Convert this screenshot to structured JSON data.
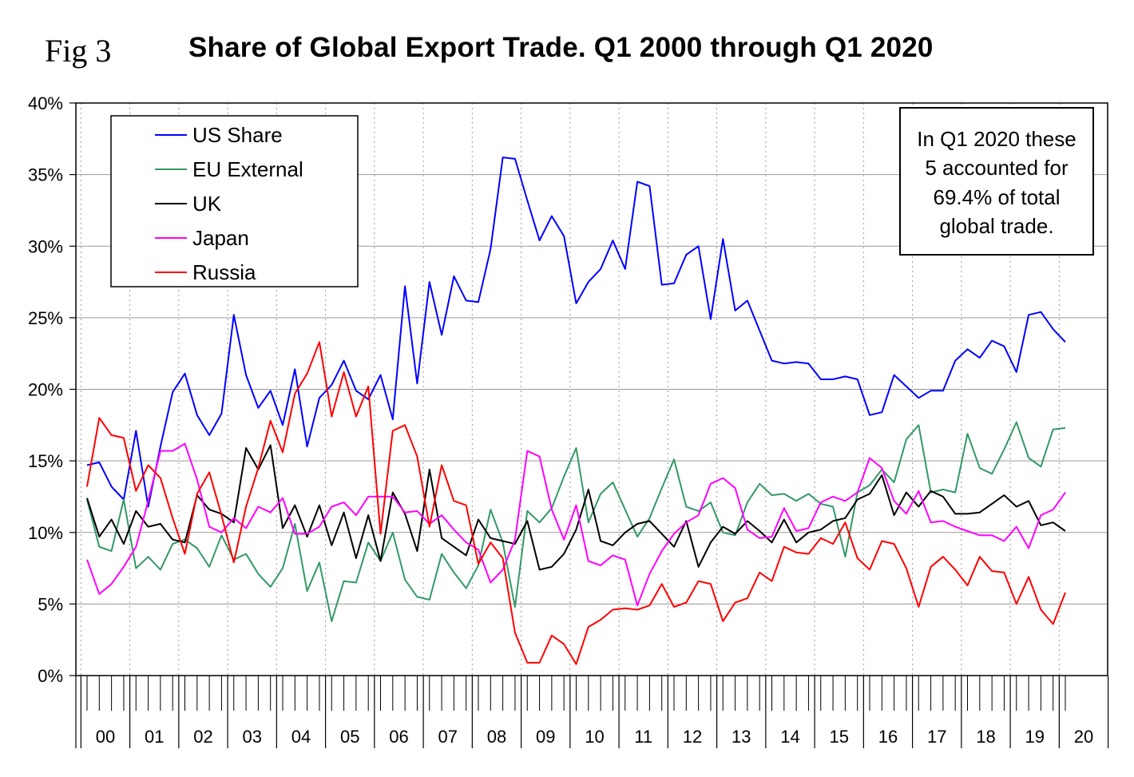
{
  "header": {
    "fig_label": "Fig 3",
    "title": "Share of Global Export Trade. Q1 2000 through Q1 2020"
  },
  "note": {
    "lines": [
      "In Q1 2020 these",
      "5 accounted for",
      "69.4% of total",
      "global trade."
    ]
  },
  "chart_data": {
    "type": "line",
    "title": "Share of Global Export Trade. Q1 2000 through Q1 2020",
    "xlabel": "",
    "ylabel": "",
    "ylim": [
      0,
      40
    ],
    "y_ticks": [
      "0%",
      "5%",
      "10%",
      "15%",
      "20%",
      "25%",
      "30%",
      "35%",
      "40%"
    ],
    "year_labels": [
      "00",
      "01",
      "02",
      "03",
      "04",
      "05",
      "06",
      "07",
      "08",
      "09",
      "10",
      "11",
      "12",
      "13",
      "14",
      "15",
      "16",
      "17",
      "18",
      "19",
      "20"
    ],
    "grid": true,
    "legend_position": "top-left",
    "quarters_count": 81,
    "series": [
      {
        "name": "US  Share",
        "color": "#0000ff",
        "values": [
          14.7,
          14.9,
          13.2,
          12.3,
          17.1,
          11.8,
          16.0,
          19.8,
          21.1,
          18.2,
          16.8,
          18.3,
          25.2,
          21.0,
          18.7,
          19.9,
          17.5,
          21.4,
          16.0,
          19.4,
          20.3,
          22.0,
          19.9,
          19.3,
          21.0,
          17.9,
          27.2,
          20.4,
          27.5,
          23.8,
          27.9,
          26.2,
          26.1,
          29.8,
          36.2,
          36.1,
          33.2,
          30.4,
          32.1,
          30.7,
          26.0,
          27.5,
          28.4,
          30.4,
          28.4,
          34.5,
          34.2,
          27.3,
          27.4,
          29.4,
          30.0,
          24.9,
          30.5,
          25.5,
          26.2,
          24.1,
          22.0,
          21.8,
          21.9,
          21.8,
          20.7,
          20.7,
          20.9,
          20.7,
          18.2,
          18.4,
          21.0,
          20.2,
          19.4,
          19.9,
          19.9,
          22.0,
          22.8,
          22.2,
          23.4,
          23.0,
          21.2,
          25.2,
          25.4,
          24.2,
          23.3
        ]
      },
      {
        "name": "EU External",
        "color": "#339966",
        "values": [
          12.3,
          9.0,
          8.7,
          12.3,
          7.5,
          8.3,
          7.4,
          9.2,
          9.5,
          8.9,
          7.6,
          9.8,
          8.1,
          8.5,
          7.1,
          6.2,
          7.5,
          10.6,
          5.9,
          7.9,
          3.8,
          6.6,
          6.5,
          9.3,
          8.0,
          10.0,
          6.7,
          5.5,
          5.3,
          8.5,
          7.2,
          6.1,
          7.7,
          11.6,
          9.3,
          4.8,
          11.5,
          10.7,
          11.7,
          13.9,
          15.9,
          10.7,
          12.7,
          13.5,
          11.6,
          9.7,
          11.0,
          13.1,
          15.1,
          11.8,
          11.5,
          12.1,
          10.0,
          9.8,
          12.1,
          13.4,
          12.6,
          12.7,
          12.2,
          12.7,
          12.0,
          11.8,
          8.3,
          12.8,
          13.3,
          14.4,
          13.5,
          16.5,
          17.5,
          12.8,
          13.0,
          12.8,
          16.9,
          14.5,
          14.1,
          15.8,
          17.7,
          15.2,
          14.6,
          17.2,
          17.3
        ]
      },
      {
        "name": "UK",
        "color": "#000000",
        "values": [
          12.4,
          9.7,
          10.9,
          9.2,
          11.5,
          10.4,
          10.6,
          9.5,
          9.3,
          12.6,
          11.6,
          11.3,
          10.7,
          15.9,
          14.4,
          16.1,
          10.3,
          11.9,
          9.7,
          11.9,
          9.1,
          11.4,
          8.2,
          11.2,
          8.0,
          12.8,
          11.3,
          8.7,
          14.4,
          9.6,
          9.0,
          8.4,
          10.9,
          9.6,
          9.4,
          9.2,
          10.8,
          7.4,
          7.6,
          8.5,
          10.2,
          13.0,
          9.4,
          9.1,
          10.0,
          10.6,
          10.8,
          9.9,
          9.0,
          10.8,
          7.6,
          9.3,
          10.4,
          9.9,
          10.8,
          10.1,
          9.3,
          10.9,
          9.3,
          10.0,
          10.2,
          10.8,
          11.0,
          12.3,
          12.7,
          14.0,
          11.2,
          12.8,
          11.8,
          12.9,
          12.5,
          11.3,
          11.3,
          11.4,
          12.0,
          12.6,
          11.8,
          12.2,
          10.5,
          10.7,
          10.1
        ]
      },
      {
        "name": "Japan",
        "color": "#ff00ff",
        "values": [
          8.1,
          5.7,
          6.4,
          7.6,
          9.0,
          12.2,
          15.7,
          15.7,
          16.2,
          13.7,
          10.4,
          10.0,
          11.0,
          10.3,
          11.8,
          11.4,
          12.4,
          9.9,
          9.9,
          10.4,
          11.8,
          12.1,
          11.2,
          12.5,
          12.5,
          12.5,
          11.4,
          11.5,
          10.6,
          11.2,
          10.2,
          9.3,
          8.8,
          6.5,
          7.4,
          9.5,
          15.7,
          15.3,
          11.6,
          9.5,
          11.9,
          8.0,
          7.7,
          8.4,
          8.1,
          4.9,
          7.1,
          8.7,
          9.9,
          10.7,
          11.2,
          13.4,
          13.8,
          13.1,
          10.2,
          9.6,
          9.7,
          11.7,
          10.1,
          10.3,
          12.1,
          12.5,
          12.2,
          12.8,
          15.2,
          14.5,
          12.2,
          11.3,
          12.9,
          10.7,
          10.8,
          10.4,
          10.1,
          9.8,
          9.8,
          9.4,
          10.4,
          8.9,
          11.2,
          11.6,
          12.8
        ]
      },
      {
        "name": "Russia",
        "color": "#ff0000",
        "values": [
          13.2,
          18.0,
          16.8,
          16.6,
          12.9,
          14.7,
          13.8,
          11.0,
          8.5,
          12.7,
          14.2,
          11.2,
          7.9,
          11.8,
          14.5,
          17.8,
          15.6,
          19.7,
          21.1,
          23.3,
          18.1,
          21.2,
          18.1,
          20.2,
          9.9,
          17.1,
          17.5,
          15.3,
          10.4,
          14.7,
          12.2,
          11.9,
          7.8,
          9.3,
          8.2,
          3.0,
          0.9,
          0.9,
          2.8,
          2.2,
          0.8,
          3.4,
          3.9,
          4.6,
          4.7,
          4.6,
          4.9,
          6.4,
          4.8,
          5.1,
          6.6,
          6.4,
          3.8,
          5.1,
          5.4,
          7.2,
          6.6,
          9.0,
          8.6,
          8.5,
          9.6,
          9.2,
          10.7,
          8.2,
          7.4,
          9.4,
          9.2,
          7.5,
          4.8,
          7.6,
          8.3,
          7.4,
          6.3,
          8.3,
          7.3,
          7.2,
          5.0,
          6.9,
          4.6,
          3.6,
          5.8
        ]
      }
    ]
  }
}
